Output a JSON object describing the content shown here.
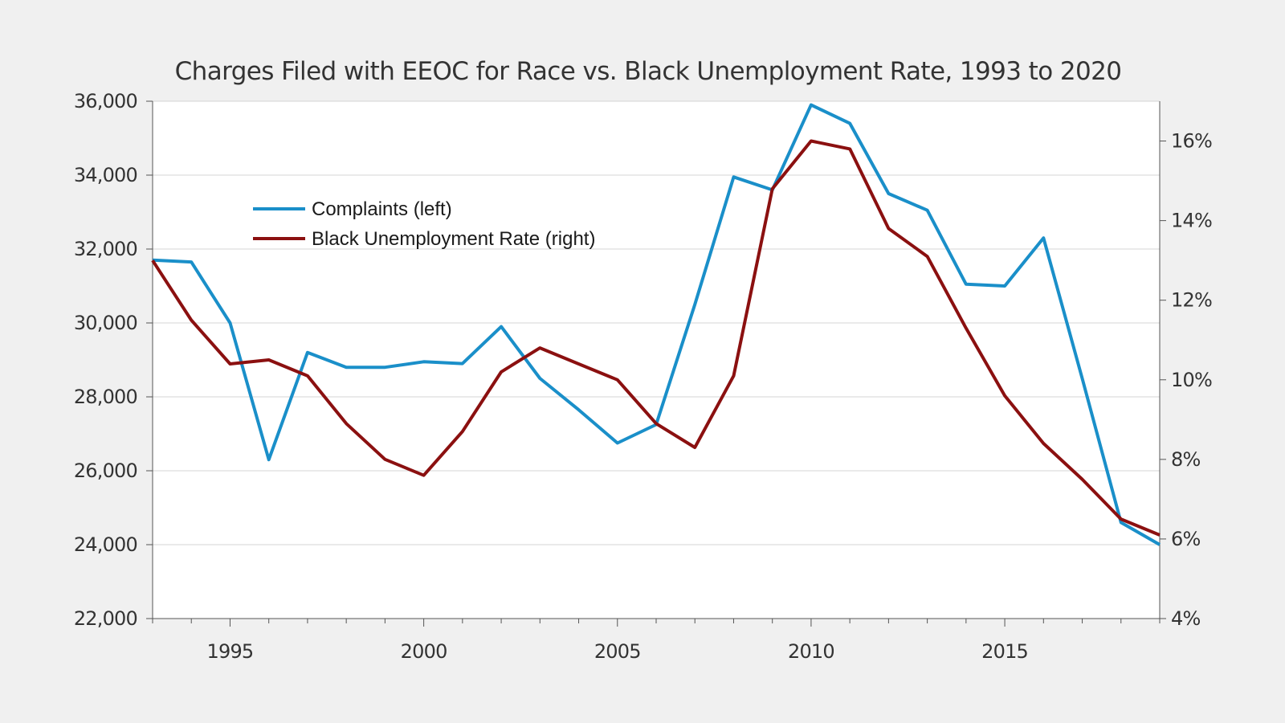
{
  "chart_data": {
    "type": "line",
    "title": "Charges Filed with EEOC for Race vs. Black Unemployment Rate, 1993 to 2020",
    "x": [
      1993,
      1994,
      1995,
      1996,
      1997,
      1998,
      1999,
      2000,
      2001,
      2002,
      2003,
      2004,
      2005,
      2006,
      2007,
      2008,
      2009,
      2010,
      2011,
      2012,
      2013,
      2014,
      2015,
      2016,
      2017,
      2018,
      2019
    ],
    "xlim": [
      1993,
      2019
    ],
    "x_tick_labels": [
      "1995",
      "2000",
      "2005",
      "2010",
      "2015"
    ],
    "x_tick_values": [
      1995,
      2000,
      2005,
      2010,
      2015
    ],
    "y_left": {
      "ylim": [
        22000,
        36000
      ],
      "tick_labels": [
        "22,000",
        "24,000",
        "26,000",
        "28,000",
        "30,000",
        "32,000",
        "34,000",
        "36,000"
      ],
      "tick_values": [
        22000,
        24000,
        26000,
        28000,
        30000,
        32000,
        34000,
        36000
      ]
    },
    "y_right": {
      "ylim": [
        4,
        17
      ],
      "tick_labels": [
        "4%",
        "6%",
        "8%",
        "10%",
        "12%",
        "14%",
        "16%"
      ],
      "tick_values": [
        4,
        6,
        8,
        10,
        12,
        14,
        16
      ]
    },
    "series": [
      {
        "name": "Complaints (left)",
        "axis": "left",
        "color": "#1a8fc9",
        "values": [
          31700,
          31650,
          30000,
          26300,
          29200,
          28800,
          28800,
          28950,
          28900,
          29900,
          28500,
          27650,
          26750,
          27250,
          30500,
          33950,
          33600,
          35900,
          35400,
          33500,
          33050,
          31050,
          31000,
          32300,
          28500,
          24600,
          24000
        ]
      },
      {
        "name": "Black Unemployment Rate (right)",
        "axis": "right",
        "color": "#8b1010",
        "values": [
          13.0,
          11.5,
          10.4,
          10.5,
          10.1,
          8.9,
          8.0,
          7.6,
          8.7,
          10.2,
          10.8,
          10.4,
          10.0,
          8.9,
          8.3,
          10.1,
          14.8,
          16.0,
          15.8,
          13.8,
          13.1,
          11.3,
          9.6,
          8.4,
          7.5,
          6.5,
          6.1
        ]
      }
    ],
    "legend": "upper-left inside plot",
    "grid": true
  }
}
